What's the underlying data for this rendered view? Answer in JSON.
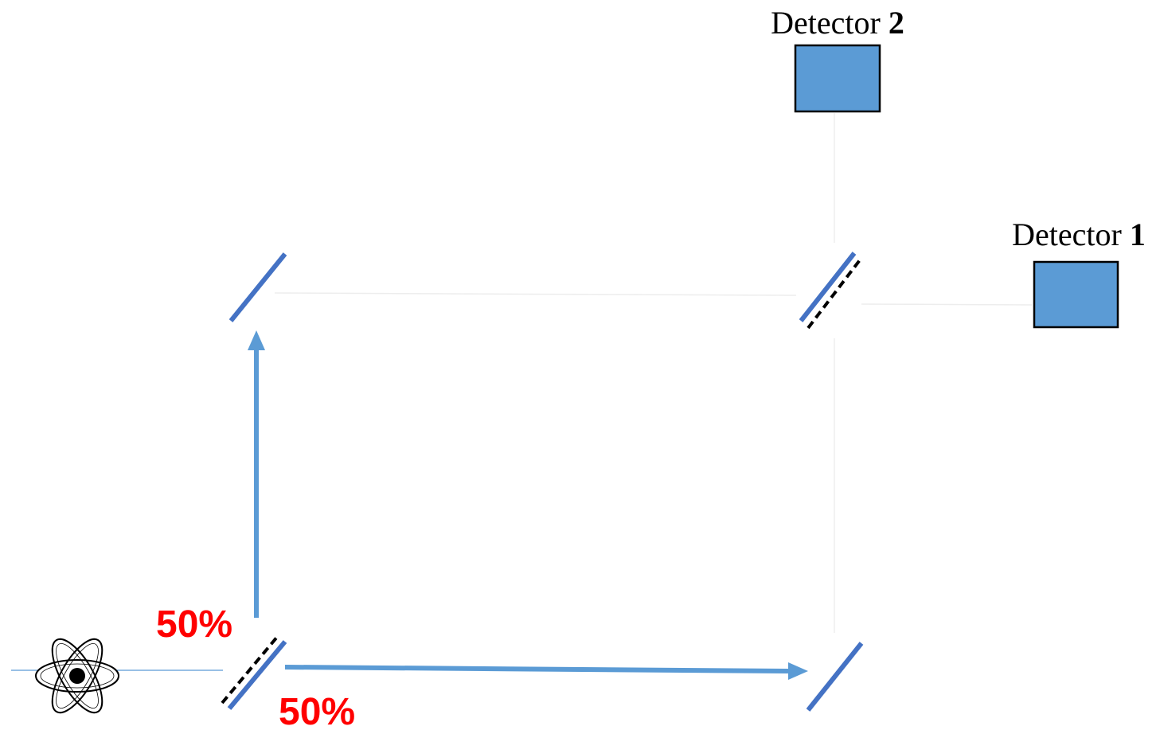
{
  "detector_2": {
    "label_text": "Detector ",
    "label_number": "2"
  },
  "detector_1": {
    "label_text": "Detector ",
    "label_number": "1"
  },
  "split_labels": {
    "upper": "50%",
    "lower": "50%"
  },
  "colors": {
    "beam": "#5B9BD5",
    "mirror": "#4472C4",
    "detector_fill": "#5B9BD5",
    "detector_stroke": "#000000",
    "percent_text": "#FF0000",
    "faint_path": "#EDEDED"
  },
  "icons": {
    "source": "atom-icon"
  }
}
